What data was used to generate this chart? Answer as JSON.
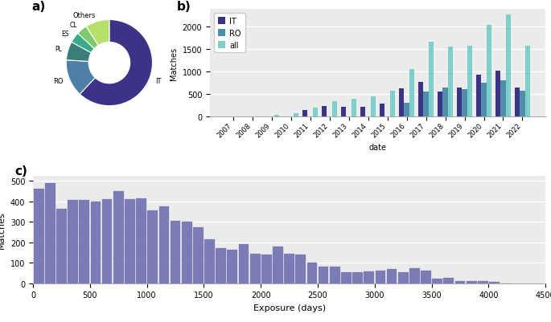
{
  "pie_labels": [
    "IT",
    "RO",
    "PL",
    "ES",
    "CL",
    "Others"
  ],
  "pie_values": [
    62,
    14,
    7,
    4,
    4,
    9
  ],
  "pie_colors": [
    "#3b3486",
    "#4d7fa8",
    "#3a7d7a",
    "#3aab8a",
    "#7dc96b",
    "#b5e06b"
  ],
  "pie_startangle": 90,
  "bar_years": [
    2007,
    2008,
    2009,
    2010,
    2011,
    2012,
    2013,
    2014,
    2015,
    2016,
    2017,
    2018,
    2019,
    2020,
    2021,
    2022
  ],
  "bar_IT": [
    0,
    0,
    0,
    0,
    150,
    240,
    210,
    220,
    290,
    620,
    780,
    550,
    640,
    930,
    1020,
    650
  ],
  "bar_RO": [
    0,
    0,
    0,
    0,
    0,
    0,
    0,
    0,
    0,
    305,
    560,
    650,
    605,
    755,
    815,
    570
  ],
  "bar_all": [
    0,
    0,
    30,
    65,
    200,
    340,
    390,
    445,
    575,
    1065,
    1670,
    1565,
    1585,
    2040,
    2280,
    1575
  ],
  "bar_IT_color": "#3b3486",
  "bar_RO_color": "#4d8fa8",
  "bar_all_color": "#7ececa",
  "bar_bg_color": "#ebebeb",
  "exposure_x": [
    50,
    150,
    250,
    350,
    450,
    550,
    650,
    750,
    850,
    950,
    1050,
    1150,
    1250,
    1350,
    1450,
    1550,
    1650,
    1750,
    1850,
    1950,
    2050,
    2150,
    2250,
    2350,
    2450,
    2550,
    2650,
    2750,
    2850,
    2950,
    3050,
    3150,
    3250,
    3350,
    3450,
    3550,
    3650,
    3750,
    3850,
    3950,
    4050,
    4150
  ],
  "exposure_y": [
    460,
    490,
    365,
    405,
    405,
    400,
    410,
    450,
    410,
    415,
    355,
    375,
    305,
    300,
    275,
    215,
    170,
    165,
    190,
    145,
    140,
    180,
    145,
    140,
    100,
    82,
    80,
    55,
    55,
    58,
    60,
    68,
    52,
    73,
    62,
    22,
    28,
    10,
    10,
    10,
    5,
    0
  ],
  "exposure_color": "#7b7bb5",
  "exposure_bg_color": "#ebebeb"
}
